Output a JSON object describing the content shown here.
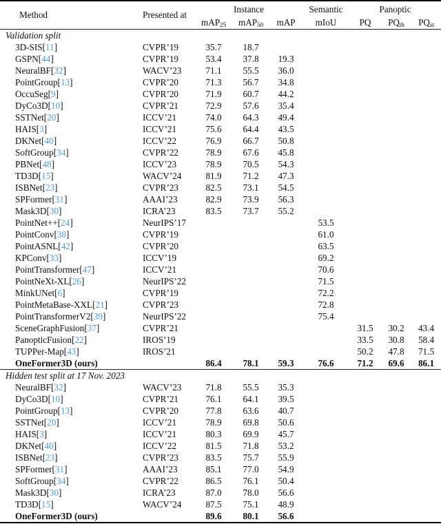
{
  "accent": {
    "citation_color": "#4E9BD5"
  },
  "table": {
    "header": {
      "method": "Method",
      "presented_at": "Presented at",
      "groups": {
        "instance": "Instance",
        "semantic": "Semantic",
        "panoptic": "Panoptic"
      },
      "subcols": [
        {
          "key": "map25",
          "base": "mAP",
          "sub": "25"
        },
        {
          "key": "map50",
          "base": "mAP",
          "sub": "50"
        },
        {
          "key": "map",
          "base": "mAP",
          "sub": ""
        },
        {
          "key": "miou",
          "base": "mIoU",
          "sub": ""
        },
        {
          "key": "pq",
          "base": "PQ",
          "sub": ""
        },
        {
          "key": "pqth",
          "base": "PQ",
          "sub": "th"
        },
        {
          "key": "pqst",
          "base": "PQ",
          "sub": "st"
        }
      ]
    },
    "sections": [
      {
        "label": "Validation split",
        "rows": [
          {
            "method": "3D-SIS",
            "cite": "11",
            "venue": "CVPR’19",
            "values": [
              "35.7",
              "18.7",
              "",
              "",
              "",
              "",
              ""
            ],
            "bold": false
          },
          {
            "method": "GSPN",
            "cite": "44",
            "venue": "CVPR’19",
            "values": [
              "53.4",
              "37.8",
              "19.3",
              "",
              "",
              "",
              ""
            ],
            "bold": false
          },
          {
            "method": "NeuralBF",
            "cite": "32",
            "venue": "WACV’23",
            "values": [
              "71.1",
              "55.5",
              "36.0",
              "",
              "",
              "",
              ""
            ],
            "bold": false
          },
          {
            "method": "PointGroup",
            "cite": "13",
            "venue": "CVPR’20",
            "values": [
              "71.3",
              "56.7",
              "34.8",
              "",
              "",
              "",
              ""
            ],
            "bold": false
          },
          {
            "method": "OccuSeg",
            "cite": "9",
            "venue": "CVPR’20",
            "values": [
              "71.9",
              "60.7",
              "44.2",
              "",
              "",
              "",
              ""
            ],
            "bold": false
          },
          {
            "method": "DyCo3D",
            "cite": "10",
            "venue": "CVPR’21",
            "values": [
              "72.9",
              "57.6",
              "35.4",
              "",
              "",
              "",
              ""
            ],
            "bold": false
          },
          {
            "method": "SSTNet",
            "cite": "20",
            "venue": "ICCV’21",
            "values": [
              "74.0",
              "64.3",
              "49.4",
              "",
              "",
              "",
              ""
            ],
            "bold": false
          },
          {
            "method": "HAIS",
            "cite": "3",
            "venue": "ICCV’21",
            "values": [
              "75.6",
              "64.4",
              "43.5",
              "",
              "",
              "",
              ""
            ],
            "bold": false
          },
          {
            "method": "DKNet",
            "cite": "40",
            "venue": "ICCV’22",
            "values": [
              "76.9",
              "66.7",
              "50.8",
              "",
              "",
              "",
              ""
            ],
            "bold": false
          },
          {
            "method": "SoftGroup",
            "cite": "34",
            "venue": "CVPR’22",
            "values": [
              "78.9",
              "67.6",
              "45.8",
              "",
              "",
              "",
              ""
            ],
            "bold": false
          },
          {
            "method": "PBNet",
            "cite": "48",
            "venue": "ICCV’23",
            "values": [
              "78.9",
              "70.5",
              "54.3",
              "",
              "",
              "",
              ""
            ],
            "bold": false
          },
          {
            "method": "TD3D",
            "cite": "15",
            "venue": "WACV’24",
            "values": [
              "81.9",
              "71.2",
              "47.3",
              "",
              "",
              "",
              ""
            ],
            "bold": false
          },
          {
            "method": "ISBNet",
            "cite": "23",
            "venue": "CVPR’23",
            "values": [
              "82.5",
              "73.1",
              "54.5",
              "",
              "",
              "",
              ""
            ],
            "bold": false
          },
          {
            "method": "SPFormer",
            "cite": "31",
            "venue": "AAAI’23",
            "values": [
              "82.9",
              "73.9",
              "56.3",
              "",
              "",
              "",
              ""
            ],
            "bold": false
          },
          {
            "method": "Mask3D",
            "cite": "30",
            "venue": "ICRA’23",
            "values": [
              "83.5",
              "73.7",
              "55.2",
              "",
              "",
              "",
              ""
            ],
            "bold": false
          },
          {
            "method": "PointNet++",
            "cite": "24",
            "venue": "NeurIPS’17",
            "values": [
              "",
              "",
              "",
              "53.5",
              "",
              "",
              ""
            ],
            "bold": false
          },
          {
            "method": "PointConv",
            "cite": "38",
            "venue": "CVPR’19",
            "values": [
              "",
              "",
              "",
              "61.0",
              "",
              "",
              ""
            ],
            "bold": false
          },
          {
            "method": "PointASNL",
            "cite": "42",
            "venue": "CVPR’20",
            "values": [
              "",
              "",
              "",
              "63.5",
              "",
              "",
              ""
            ],
            "bold": false
          },
          {
            "method": "KPConv",
            "cite": "33",
            "venue": "ICCV’19",
            "values": [
              "",
              "",
              "",
              "69.2",
              "",
              "",
              ""
            ],
            "bold": false
          },
          {
            "method": "PointTransformer",
            "cite": "47",
            "venue": "ICCV’21",
            "values": [
              "",
              "",
              "",
              "70.6",
              "",
              "",
              ""
            ],
            "bold": false
          },
          {
            "method": "PointNeXt-XL",
            "cite": "26",
            "venue": "NeurIPS’22",
            "values": [
              "",
              "",
              "",
              "71.5",
              "",
              "",
              ""
            ],
            "bold": false
          },
          {
            "method": "MinkUNet",
            "cite": "6",
            "venue": "CVPR’19",
            "values": [
              "",
              "",
              "",
              "72.2",
              "",
              "",
              ""
            ],
            "bold": false
          },
          {
            "method": "PointMetaBase-XXL",
            "cite": "21",
            "venue": "CVPR’23",
            "values": [
              "",
              "",
              "",
              "72.8",
              "",
              "",
              ""
            ],
            "bold": false
          },
          {
            "method": "PointTransformerV2",
            "cite": "39",
            "venue": "NeurIPS’22",
            "values": [
              "",
              "",
              "",
              "75.4",
              "",
              "",
              ""
            ],
            "bold": false
          },
          {
            "method": "SceneGraphFusion",
            "cite": "37",
            "venue": "CVPR’21",
            "values": [
              "",
              "",
              "",
              "",
              "31.5",
              "30.2",
              "43.4"
            ],
            "bold": false
          },
          {
            "method": "PanopticFusion",
            "cite": "22",
            "venue": "IROS’19",
            "values": [
              "",
              "",
              "",
              "",
              "33.5",
              "30.8",
              "58.4"
            ],
            "bold": false
          },
          {
            "method": "TUPPer-Map",
            "cite": "43",
            "venue": "IROS’21",
            "values": [
              "",
              "",
              "",
              "",
              "50.2",
              "47.8",
              "71.5"
            ],
            "bold": false
          },
          {
            "method": "OneFormer3D (ours)",
            "cite": null,
            "venue": "",
            "values": [
              "86.4",
              "78.1",
              "59.3",
              "76.6",
              "71.2",
              "69.6",
              "86.1"
            ],
            "bold": true
          }
        ]
      },
      {
        "label": "Hidden test split at 17 Nov. 2023",
        "rows": [
          {
            "method": "NeuralBF",
            "cite": "32",
            "venue": "WACV’23",
            "values": [
              "71.8",
              "55.5",
              "35.3",
              "",
              "",
              "",
              ""
            ],
            "bold": false
          },
          {
            "method": "DyCo3D",
            "cite": "10",
            "venue": "CVPR’21",
            "values": [
              "76.1",
              "64.1",
              "39.5",
              "",
              "",
              "",
              ""
            ],
            "bold": false
          },
          {
            "method": "PointGroup",
            "cite": "13",
            "venue": "CVPR’20",
            "values": [
              "77.8",
              "63.6",
              "40.7",
              "",
              "",
              "",
              ""
            ],
            "bold": false
          },
          {
            "method": "SSTNet",
            "cite": "20",
            "venue": "ICCV’21",
            "values": [
              "78.9",
              "69.8",
              "50.6",
              "",
              "",
              "",
              ""
            ],
            "bold": false
          },
          {
            "method": "HAIS",
            "cite": "3",
            "venue": "ICCV’21",
            "values": [
              "80.3",
              "69.9",
              "45.7",
              "",
              "",
              "",
              ""
            ],
            "bold": false
          },
          {
            "method": "DKNet",
            "cite": "40",
            "venue": "ICCV’22",
            "values": [
              "81.5",
              "71.8",
              "53.2",
              "",
              "",
              "",
              ""
            ],
            "bold": false
          },
          {
            "method": "ISBNet",
            "cite": "23",
            "venue": "CVPR’23",
            "values": [
              "83.5",
              "75.7",
              "55.9",
              "",
              "",
              "",
              ""
            ],
            "bold": false
          },
          {
            "method": "SPFormer",
            "cite": "31",
            "venue": "AAAI’23",
            "values": [
              "85.1",
              "77.0",
              "54.9",
              "",
              "",
              "",
              ""
            ],
            "bold": false
          },
          {
            "method": "SoftGroup",
            "cite": "34",
            "venue": "CVPR’22",
            "values": [
              "86.5",
              "76.1",
              "50.4",
              "",
              "",
              "",
              ""
            ],
            "bold": false
          },
          {
            "method": "Mask3D",
            "cite": "30",
            "venue": "ICRA’23",
            "values": [
              "87.0",
              "78.0",
              "56.6",
              "",
              "",
              "",
              ""
            ],
            "bold": false
          },
          {
            "method": "TD3D",
            "cite": "15",
            "venue": "WACV’24",
            "values": [
              "87.5",
              "75.1",
              "48.9",
              "",
              "",
              "",
              ""
            ],
            "bold": false
          },
          {
            "method": "OneFormer3D (ours)",
            "cite": null,
            "venue": "",
            "values": [
              "89.6",
              "80.1",
              "56.6",
              "",
              "",
              "",
              ""
            ],
            "bold": true
          }
        ]
      }
    ]
  }
}
